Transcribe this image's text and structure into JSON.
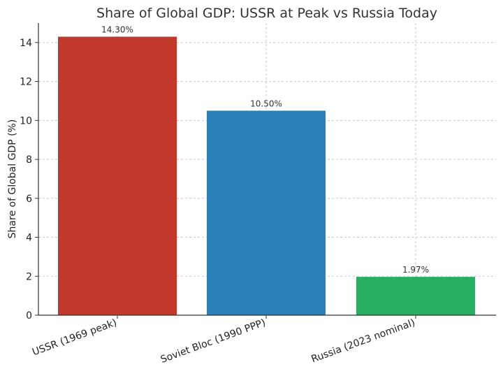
{
  "chart_data": {
    "type": "bar",
    "title": "Share of Global GDP: USSR at Peak vs Russia Today",
    "xlabel": "",
    "ylabel": "Share of Global GDP (%)",
    "categories": [
      "USSR (1969 peak)",
      "Soviet Bloc (1990 PPP)",
      "Russia (2023 nominal)"
    ],
    "values": [
      14.3,
      10.5,
      1.97
    ],
    "data_labels": [
      "14.30%",
      "10.50%",
      "1.97%"
    ],
    "colors": [
      "#c0392b",
      "#2980b9",
      "#27ae60"
    ],
    "ylim": [
      0,
      15
    ],
    "yticks": [
      0,
      2,
      4,
      6,
      8,
      10,
      12,
      14
    ],
    "grid": true,
    "legend": "none"
  }
}
